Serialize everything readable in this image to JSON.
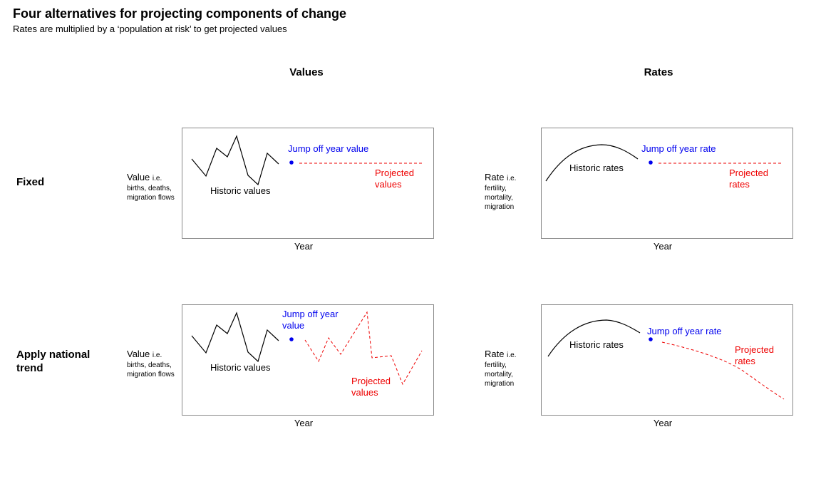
{
  "title": "Four alternatives for projecting components of change",
  "subtitle": "Rates are multiplied by a ‘population at risk’ to get projected values",
  "columns": {
    "values": "Values",
    "rates": "Rates"
  },
  "rows": {
    "fixed": "Fixed",
    "national_line1": "Apply national",
    "national_line2": "trend"
  },
  "axis": {
    "value_label": "Value",
    "value_ie": "i.e.",
    "value_detail_1": "births, deaths,",
    "value_detail_2": "migration flows",
    "rate_label": "Rate",
    "rate_ie": "i.e.",
    "rate_detail_1": "fertility,",
    "rate_detail_2": "mortality,",
    "rate_detail_3": "migration",
    "x_label": "Year"
  },
  "panels": {
    "values_fixed": {
      "historic": "Historic values",
      "jump": "Jump off year value",
      "projected_1": "Projected",
      "projected_2": "values"
    },
    "rates_fixed": {
      "historic": "Historic rates",
      "jump": "Jump off year rate",
      "projected_1": "Projected",
      "projected_2": "rates"
    },
    "values_trend": {
      "historic": "Historic values",
      "jump_1": "Jump off year",
      "jump_2": "value",
      "projected_1": "Projected",
      "projected_2": "values"
    },
    "rates_trend": {
      "historic": "Historic rates",
      "jump": "Jump off year rate",
      "projected_1": "Projected",
      "projected_2": "rates"
    }
  },
  "colors": {
    "historic": "#000000",
    "jump": "#0000ee",
    "projected": "#ee0000",
    "frame": "#888888"
  }
}
